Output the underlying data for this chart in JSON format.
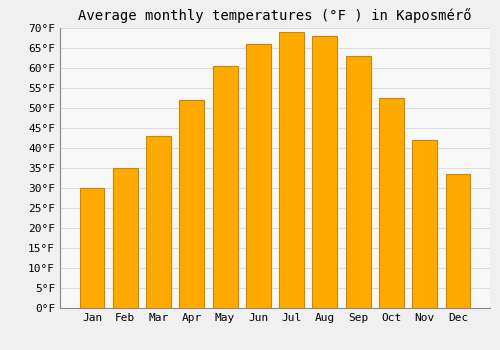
{
  "title": "Average monthly temperatures (°F ) in Kaposmérő",
  "months": [
    "Jan",
    "Feb",
    "Mar",
    "Apr",
    "May",
    "Jun",
    "Jul",
    "Aug",
    "Sep",
    "Oct",
    "Nov",
    "Dec"
  ],
  "values": [
    30.0,
    35.0,
    43.0,
    52.0,
    60.5,
    66.0,
    69.0,
    68.0,
    63.0,
    52.5,
    42.0,
    33.5
  ],
  "bar_color": "#FFAA00",
  "bar_edge_color": "#CC8800",
  "ylim": [
    0,
    70
  ],
  "yticks": [
    0,
    5,
    10,
    15,
    20,
    25,
    30,
    35,
    40,
    45,
    50,
    55,
    60,
    65,
    70
  ],
  "background_color": "#F0F0F0",
  "plot_bg_color": "#F8F8F8",
  "grid_color": "#DDDDDD",
  "title_fontsize": 10,
  "tick_fontsize": 8
}
